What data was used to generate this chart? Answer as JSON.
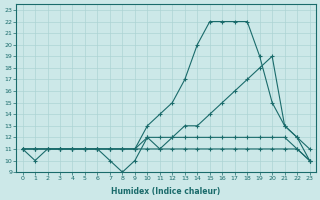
{
  "xlabel": "Humidex (Indice chaleur)",
  "bg_color": "#cce8e8",
  "line_color": "#1a6b6b",
  "grid_color": "#add4d4",
  "xlim": [
    -0.5,
    23.5
  ],
  "ylim": [
    9,
    23.5
  ],
  "xticks": [
    0,
    1,
    2,
    3,
    4,
    5,
    6,
    7,
    8,
    9,
    10,
    11,
    12,
    13,
    14,
    15,
    16,
    17,
    18,
    19,
    20,
    21,
    22,
    23
  ],
  "yticks": [
    9,
    10,
    11,
    12,
    13,
    14,
    15,
    16,
    17,
    18,
    19,
    20,
    21,
    22,
    23
  ],
  "line1_x": [
    0,
    1,
    2,
    3,
    4,
    5,
    6,
    7,
    8,
    9,
    10,
    11,
    12,
    13,
    14,
    15,
    16,
    17,
    18,
    19,
    20,
    21,
    22,
    23
  ],
  "line1_y": [
    11,
    11,
    11,
    11,
    11,
    11,
    11,
    11,
    11,
    11,
    11,
    11,
    11,
    11,
    11,
    11,
    11,
    11,
    11,
    11,
    11,
    11,
    11,
    10
  ],
  "line2_x": [
    0,
    1,
    2,
    3,
    4,
    5,
    6,
    7,
    8,
    9,
    10,
    11,
    12,
    13,
    14,
    15,
    16,
    17,
    18,
    19,
    20,
    21,
    22,
    23
  ],
  "line2_y": [
    11,
    11,
    11,
    11,
    11,
    11,
    11,
    11,
    11,
    11,
    12,
    12,
    12,
    13,
    13,
    14,
    15,
    16,
    17,
    18,
    19,
    13,
    12,
    11
  ],
  "line3_x": [
    0,
    1,
    2,
    3,
    4,
    5,
    6,
    7,
    8,
    9,
    10,
    11,
    12,
    13,
    14,
    15,
    16,
    17,
    18,
    19,
    20,
    21,
    22,
    23
  ],
  "line3_y": [
    11,
    11,
    11,
    11,
    11,
    11,
    11,
    11,
    11,
    11,
    13,
    14,
    15,
    17,
    20,
    22,
    22,
    22,
    22,
    19,
    15,
    13,
    12,
    10
  ],
  "line4_x": [
    0,
    1,
    2,
    3,
    4,
    5,
    6,
    7,
    8,
    9,
    10,
    11,
    12,
    13,
    14,
    15,
    16,
    17,
    18,
    19,
    20,
    21,
    22,
    23
  ],
  "line4_y": [
    11,
    10,
    11,
    11,
    11,
    11,
    11,
    10,
    9,
    10,
    12,
    11,
    12,
    12,
    12,
    12,
    12,
    12,
    12,
    12,
    12,
    12,
    11,
    10
  ],
  "marker": "+",
  "markersize": 3,
  "linewidth": 0.8
}
